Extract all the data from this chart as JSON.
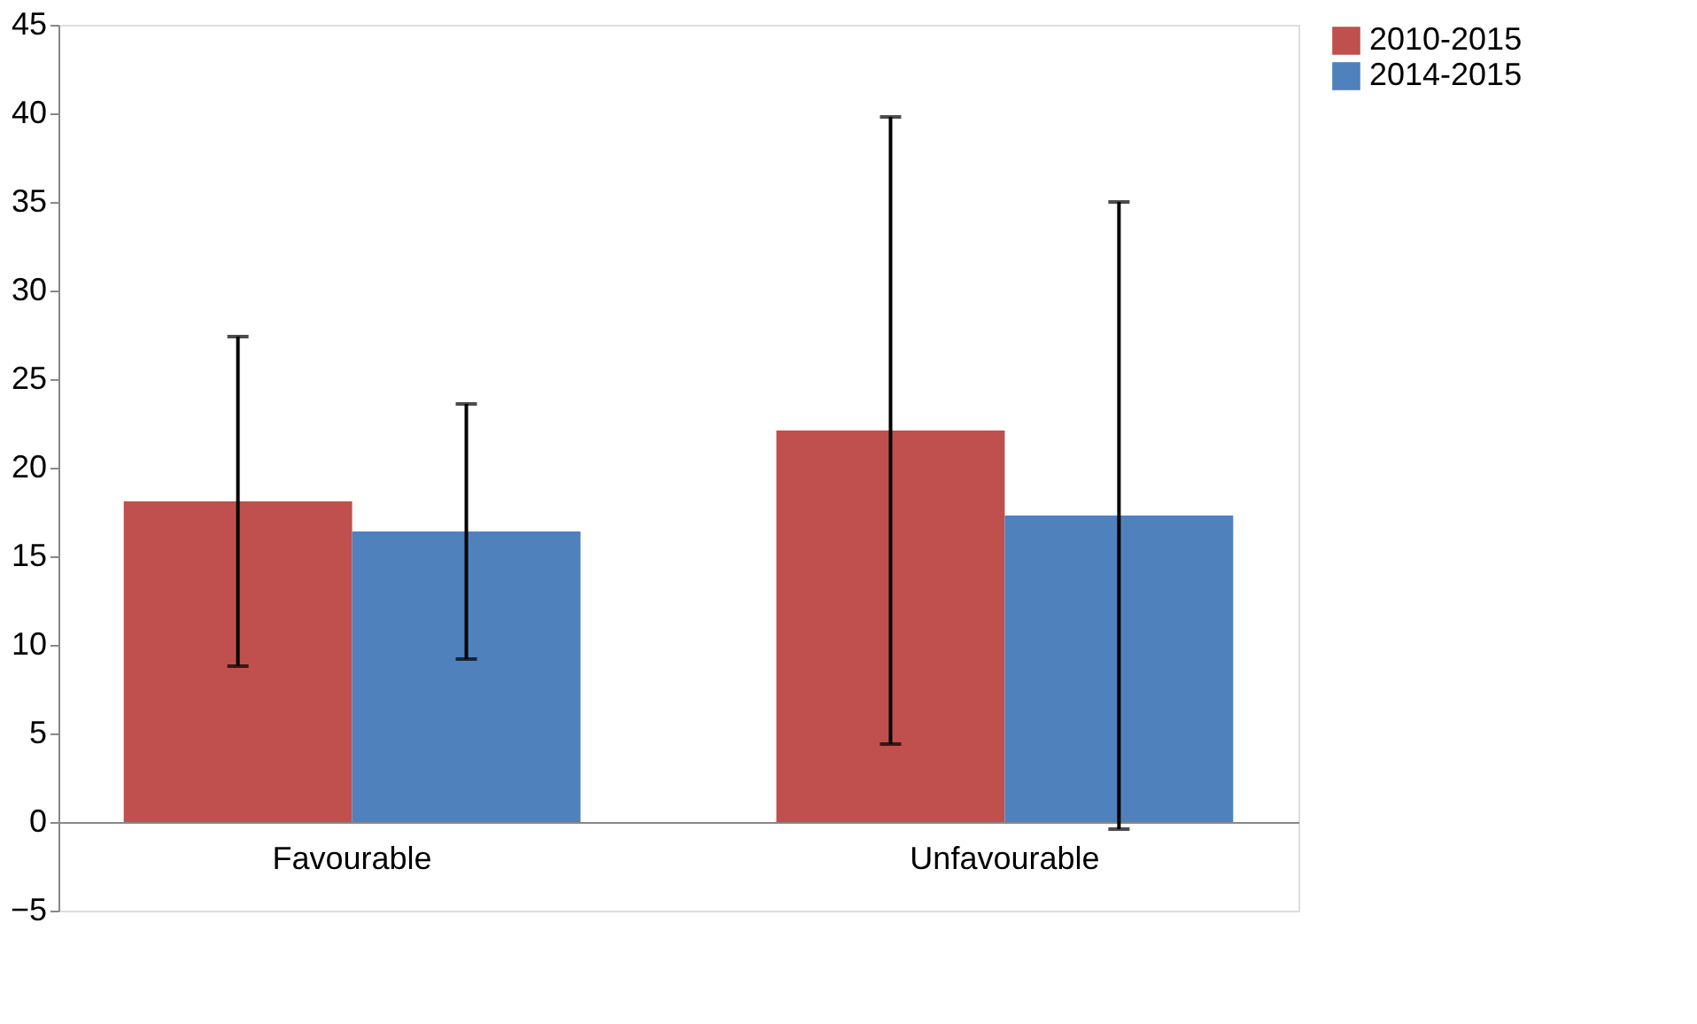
{
  "chart_data": {
    "type": "bar",
    "categories": [
      "Favourable",
      "Unfavourable"
    ],
    "series": [
      {
        "name": "2010-2015",
        "color": "#c0504d",
        "values": [
          18.1,
          22.1
        ],
        "errors": [
          [
            8.8,
            27.4
          ],
          [
            4.4,
            39.8
          ]
        ]
      },
      {
        "name": "2014-2015",
        "color": "#4f81bd",
        "values": [
          16.4,
          17.3
        ],
        "errors": [
          [
            9.2,
            23.6
          ],
          [
            -0.4,
            35.0
          ]
        ]
      }
    ],
    "ylim": [
      -5,
      45
    ],
    "yticks": [
      -5,
      0,
      5,
      10,
      15,
      20,
      25,
      30,
      35,
      40,
      45
    ],
    "grid": false,
    "legend": "right"
  }
}
